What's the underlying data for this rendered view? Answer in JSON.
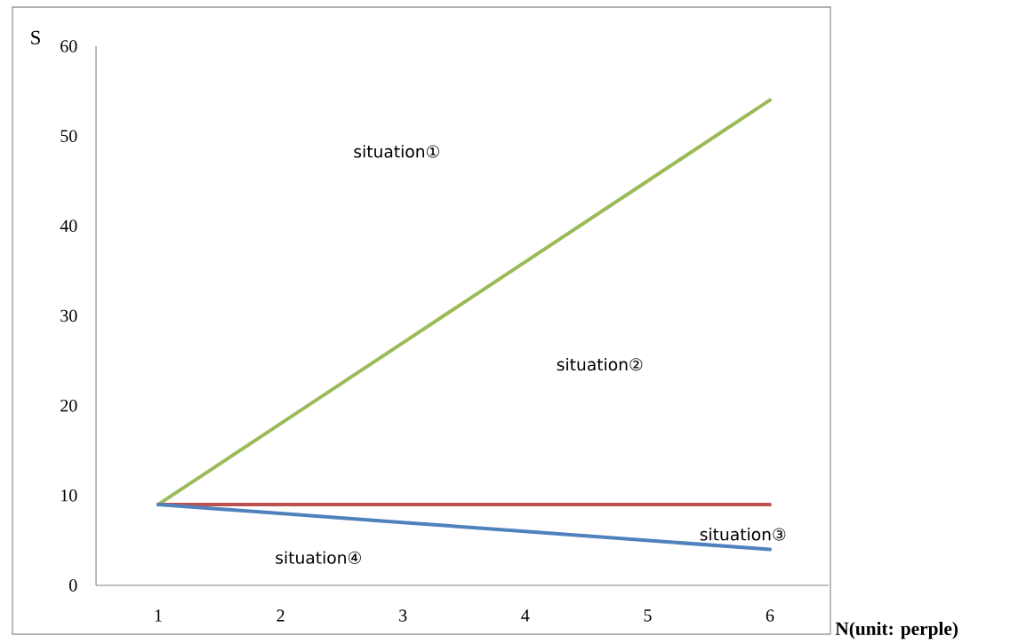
{
  "chart_data": {
    "type": "line",
    "xlabel": "N(unit: perple)",
    "ylabel": "S",
    "categories": [
      "1",
      "2",
      "3",
      "4",
      "5",
      "6"
    ],
    "series": [
      {
        "color": "#9bbb59",
        "values": [
          9,
          18,
          27,
          36,
          45,
          54
        ]
      },
      {
        "color": "#c0504d",
        "values": [
          9,
          9,
          9,
          9,
          9,
          9
        ]
      },
      {
        "color": "#4f81bd",
        "values": [
          9,
          8,
          7,
          6,
          5,
          4
        ]
      }
    ],
    "ylim": [
      0,
      60
    ],
    "yticks": [
      0,
      10,
      20,
      30,
      40,
      50,
      60
    ],
    "annotations": [
      "situation①",
      "situation②",
      "situation③",
      "situation④"
    ]
  }
}
